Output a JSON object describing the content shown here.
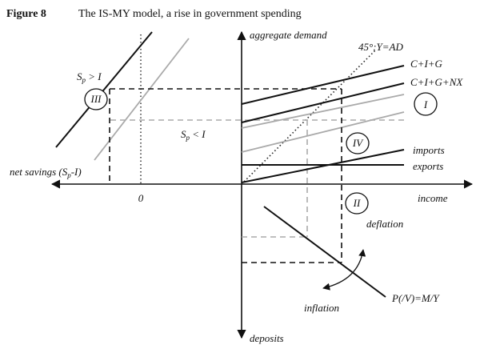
{
  "figure": {
    "number": "Figure 8",
    "title": "The IS-MY model, a rise in government spending"
  },
  "axes": {
    "vertical_top": "aggregate demand",
    "vertical_bottom": "deposits",
    "horizontal_right": "income",
    "horizontal_left": "net savings (S",
    "horizontal_left_sub": "p",
    "horizontal_left_tail": "-I)",
    "zero": "0"
  },
  "curves": {
    "diagonal": "45°:Y=AD",
    "cig": "C+I+G",
    "cignx": "C+I+G+NX",
    "imports": "imports",
    "exports": "exports",
    "price": "P(/V)=M/Y"
  },
  "quadrants": {
    "I": "I",
    "II": "II",
    "III": "III",
    "IV": "IV"
  },
  "savings": {
    "sp": "S",
    "sp_sub": "p",
    "gt_i": " > I",
    "lt_i": " < I"
  },
  "annotations": {
    "deflation": "deflation",
    "inflation": "inflation"
  }
}
